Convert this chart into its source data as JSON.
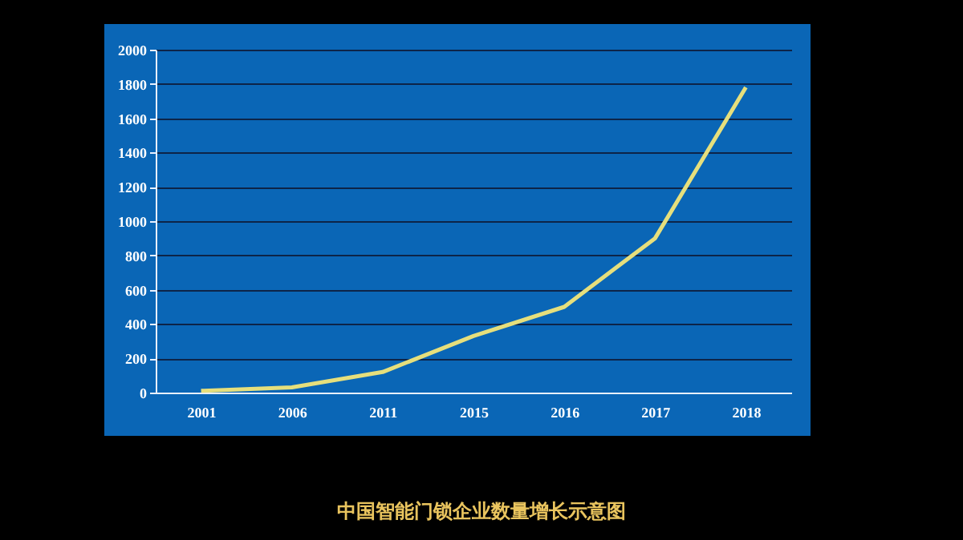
{
  "chart_data": {
    "type": "line",
    "title": "中国智能门锁企业数量增长示意图",
    "categories": [
      "2001",
      "2006",
      "2011",
      "2015",
      "2016",
      "2017",
      "2018"
    ],
    "series": [
      {
        "color": "#e6df7c",
        "values": [
          10,
          30,
          120,
          330,
          500,
          900,
          1780
        ]
      }
    ],
    "ylim": [
      0,
      2000
    ],
    "yticks": [
      0,
      200,
      400,
      600,
      800,
      1000,
      1200,
      1400,
      1600,
      1800,
      2000
    ],
    "grid": "y",
    "legend": false,
    "marker": "none",
    "line_style": "solid"
  }
}
